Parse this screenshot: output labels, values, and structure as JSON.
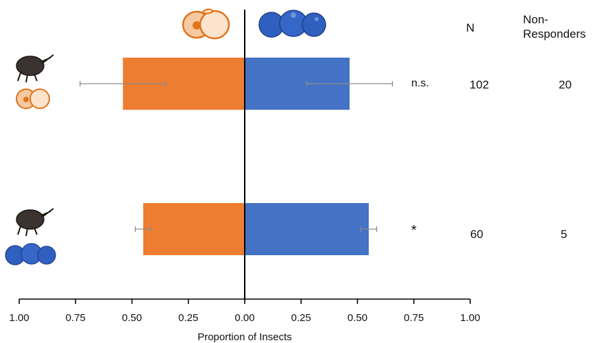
{
  "chart_data": {
    "type": "bar",
    "orientation": "horizontal",
    "layout": "diverging",
    "xlabel": "Proportion of Insects",
    "xlim": [
      -1,
      1
    ],
    "xticks": [
      -1,
      -0.75,
      -0.5,
      -0.25,
      0,
      0.25,
      0.5,
      0.75,
      1
    ],
    "xtick_labels": [
      "1.00",
      "0.75",
      "0.50",
      "0.25",
      "0.00",
      "0.25",
      "0.50",
      "0.75",
      "1.00"
    ],
    "categories": [
      "weevil reared on peach",
      "weevil reared on blueberry"
    ],
    "series": [
      {
        "key": "peach",
        "side": "left",
        "color": "#ed7d31",
        "values": [
          0.54,
          0.45
        ],
        "error": [
          0.19,
          0.035
        ]
      },
      {
        "key": "blueberry",
        "side": "right",
        "color": "#4472c4",
        "values": [
          0.465,
          0.55
        ],
        "error": [
          0.19,
          0.035
        ]
      }
    ],
    "significance": [
      "n.s.",
      "*"
    ],
    "n": [
      "102",
      "60"
    ],
    "non_responders": [
      "20",
      "5"
    ]
  },
  "table": {
    "n_header": "N",
    "nonresp_header_line1": "Non-",
    "nonresp_header_line2": "Responders"
  },
  "icons": {
    "top_left": "peach-icon",
    "top_right": "blueberry-icon",
    "row1": [
      "weevil-icon",
      "peach-icon"
    ],
    "row2": [
      "weevil-icon",
      "blueberry-icon"
    ]
  }
}
